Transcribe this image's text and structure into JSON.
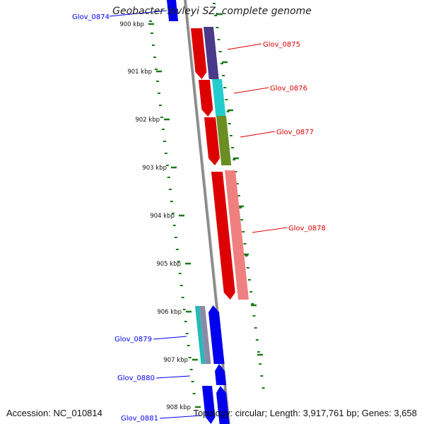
{
  "title": "Geobacter lovleyi SZ, complete genome",
  "footer": {
    "accession": "Accession: NC_010814",
    "summary": "Topology: circular; Length: 3,917,761 bp; Genes: 3,658"
  },
  "ticks": [
    "900 kbp",
    "901 kbp",
    "902 kbp",
    "903 kbp",
    "904 kbp",
    "905 kbp",
    "906 kbp",
    "907 kbp",
    "908 kbp"
  ],
  "genes": [
    {
      "name": "Glov_0874",
      "strand": "reverse",
      "color": "#0000ee"
    },
    {
      "name": "Glov_0875",
      "strand": "forward",
      "color": "#dd0000"
    },
    {
      "name": "Glov_0876",
      "strand": "forward",
      "color": "#dd0000"
    },
    {
      "name": "Glov_0877",
      "strand": "forward",
      "color": "#dd0000"
    },
    {
      "name": "Glov_0878",
      "strand": "forward",
      "color": "#dd0000"
    },
    {
      "name": "Glov_0879",
      "strand": "reverse",
      "color": "#0000ee"
    },
    {
      "name": "Glov_0880",
      "strand": "reverse",
      "color": "#0000ee"
    },
    {
      "name": "Glov_0881",
      "strand": "reverse",
      "color": "#0000ee"
    }
  ],
  "cog_colors": {
    "Glov_0875": "#4a3a8a",
    "Glov_0876": "#22cccc",
    "Glov_0877": "#6b8e23",
    "Glov_0878": "#f08080",
    "Glov_0879": "#22bbbb"
  },
  "colors": {
    "backbone": "#8a8a8a",
    "tick": "#1a7a1a",
    "forward": "#dd0000",
    "reverse": "#0000ee"
  }
}
